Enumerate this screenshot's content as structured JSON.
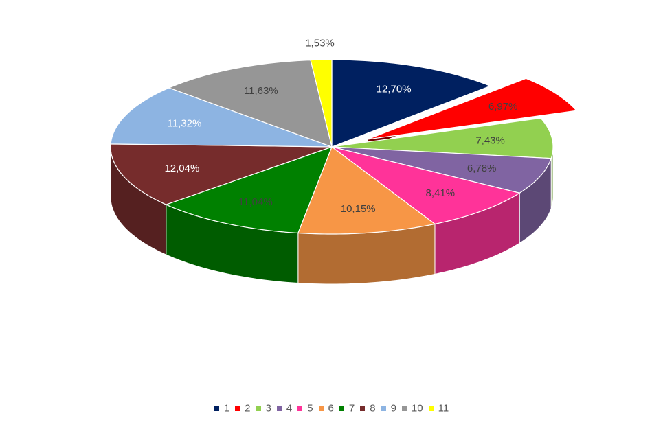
{
  "chart_data": {
    "type": "pie",
    "variant": "3d-exploded",
    "categories": [
      "1",
      "2",
      "3",
      "4",
      "5",
      "6",
      "7",
      "8",
      "9",
      "10",
      "11"
    ],
    "values": [
      12.7,
      6.97,
      7.43,
      6.78,
      8.41,
      10.15,
      11.04,
      12.04,
      11.32,
      11.63,
      1.53
    ],
    "data_labels": [
      "12,70%",
      "6,97%",
      "7,43%",
      "6,78%",
      "8,41%",
      "10,15%",
      "11,04%",
      "12,04%",
      "11,32%",
      "11,63%",
      "1,53%"
    ],
    "colors": [
      "#002060",
      "#FF0000",
      "#92D050",
      "#8064A2",
      "#FF3399",
      "#F79646",
      "#008000",
      "#762C2C",
      "#8DB4E2",
      "#969696",
      "#FFFF00"
    ],
    "label_colors": [
      "#FFFFFF",
      "#404040",
      "#404040",
      "#404040",
      "#404040",
      "#404040",
      "#404040",
      "#FFFFFF",
      "#FFFFFF",
      "#404040",
      "#404040"
    ],
    "exploded_slice": "2",
    "legend_position": "bottom",
    "title": ""
  }
}
